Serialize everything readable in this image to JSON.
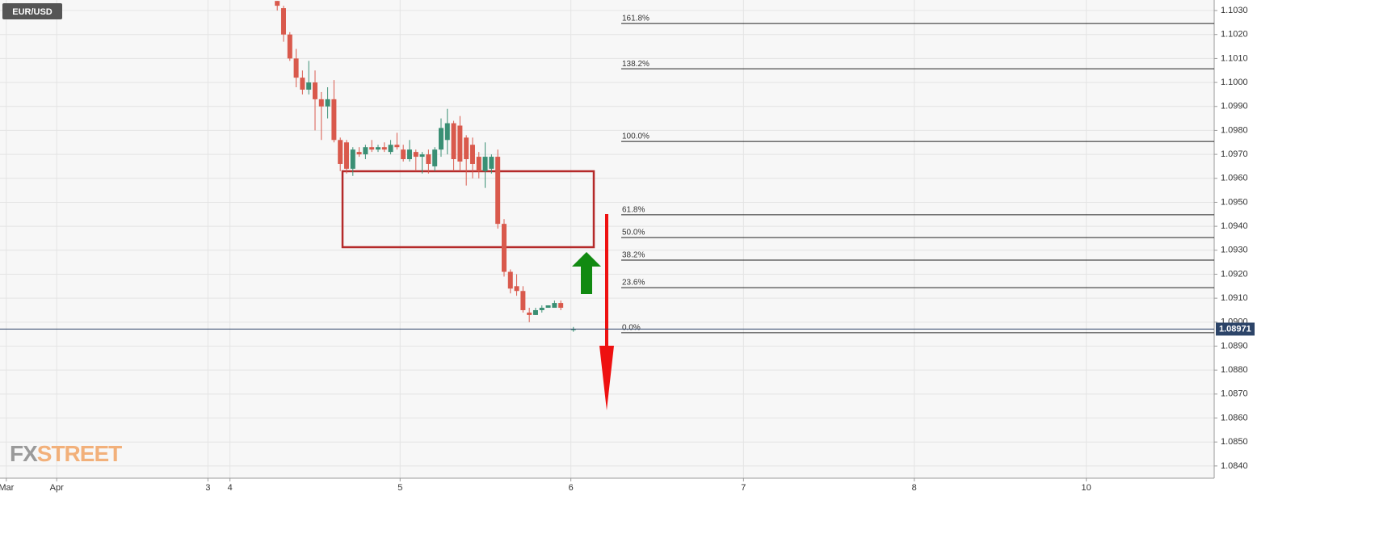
{
  "chart_data": {
    "type": "candlestick",
    "title": "EUR/USD",
    "logo_fx": "FX",
    "logo_street": "STREET",
    "x": [
      44,
      45,
      46,
      47,
      48,
      49,
      50,
      51,
      52,
      53,
      54,
      55,
      56,
      57,
      58,
      59,
      60,
      61,
      62,
      63,
      64,
      65,
      66,
      67,
      68,
      69,
      70,
      71,
      72,
      73,
      74,
      75,
      76,
      77,
      78,
      79,
      80,
      81,
      82,
      83,
      84,
      85,
      86,
      87,
      88,
      89,
      91
    ],
    "open": [
      1.1034,
      1.1031,
      1.102,
      1.101,
      1.1002,
      1.0997,
      1.1,
      1.0993,
      1.099,
      1.0993,
      1.0976,
      1.0975,
      1.0964,
      1.0971,
      1.097,
      1.0973,
      1.0972,
      1.0973,
      1.0971,
      1.0974,
      1.0972,
      1.0968,
      1.0971,
      1.0969,
      1.097,
      1.0965,
      1.0972,
      1.0976,
      1.0983,
      1.0982,
      1.0977,
      1.0974,
      1.0969,
      1.0963,
      1.0964,
      1.0969,
      1.0941,
      1.0921,
      1.0915,
      1.0913,
      1.0904,
      1.0903,
      1.0905,
      1.0906,
      1.0906,
      1.0908,
      1.0897
    ],
    "high": [
      1.1034,
      1.1032,
      1.1021,
      1.1014,
      1.1005,
      1.1009,
      1.1005,
      1.0996,
      1.0998,
      1.1001,
      1.0977,
      1.0976,
      1.0973,
      1.0973,
      1.0974,
      1.0976,
      1.0974,
      1.0975,
      1.0976,
      1.0979,
      1.0974,
      1.0976,
      1.0972,
      1.0971,
      1.0972,
      1.0973,
      1.0985,
      1.0989,
      1.0984,
      1.0986,
      1.0978,
      1.0977,
      1.0971,
      1.0975,
      1.097,
      1.0972,
      1.0943,
      1.0922,
      1.092,
      1.0915,
      1.0906,
      1.0906,
      1.0907,
      1.0907,
      1.0909,
      1.0909,
      1.0898
    ],
    "low": [
      1.103,
      1.1017,
      1.1009,
      1.0998,
      1.0995,
      1.0995,
      1.098,
      1.0976,
      1.0985,
      1.0975,
      1.0963,
      1.0962,
      1.0961,
      1.0969,
      1.0968,
      1.0971,
      1.0971,
      1.0971,
      1.097,
      1.0972,
      1.0967,
      1.0967,
      1.0963,
      1.0962,
      1.0962,
      1.0963,
      1.0969,
      1.097,
      1.0963,
      1.0963,
      1.0957,
      1.096,
      1.096,
      1.0956,
      1.0962,
      1.0939,
      1.0919,
      1.0912,
      1.0911,
      1.0904,
      1.09,
      1.0903,
      1.0904,
      1.0906,
      1.0907,
      1.0905,
      1.0896
    ],
    "close": [
      1.1032,
      1.102,
      1.101,
      1.1002,
      1.0997,
      1.1,
      1.0993,
      1.099,
      1.0993,
      1.0976,
      1.0966,
      1.0964,
      1.0972,
      1.097,
      1.0973,
      1.0972,
      1.0973,
      1.0972,
      1.0974,
      1.0973,
      1.0968,
      1.0972,
      1.0969,
      1.097,
      1.0966,
      1.0972,
      1.0981,
      1.0983,
      1.0968,
      1.0967,
      1.0968,
      1.0966,
      1.0963,
      1.0969,
      1.0969,
      1.0941,
      1.0921,
      1.0914,
      1.0913,
      1.0905,
      1.0903,
      1.0905,
      1.0906,
      1.0907,
      1.0908,
      1.0906,
      1.0897
    ],
    "up_color": "#3a8f74",
    "down_color": "#d9594c",
    "xlim": [
      0,
      192.7
    ],
    "xticks": [
      {
        "value": 1,
        "label": "Mar"
      },
      {
        "value": 9,
        "label": "Apr"
      },
      {
        "value": 33,
        "label": "3"
      },
      {
        "value": 36.5,
        "label": "4"
      },
      {
        "value": 63.5,
        "label": "5"
      },
      {
        "value": 90.6,
        "label": "6"
      },
      {
        "value": 118,
        "label": "7"
      },
      {
        "value": 145.1,
        "label": "8"
      },
      {
        "value": 172.4,
        "label": "10"
      }
    ],
    "ylim": [
      1.08349,
      1.10344
    ],
    "yticks": [
      {
        "value": 1.103,
        "label": "1.1030"
      },
      {
        "value": 1.102,
        "label": "1.1020"
      },
      {
        "value": 1.101,
        "label": "1.1010"
      },
      {
        "value": 1.1,
        "label": "1.1000"
      },
      {
        "value": 1.099,
        "label": "1.0990"
      },
      {
        "value": 1.098,
        "label": "1.0980"
      },
      {
        "value": 1.097,
        "label": "1.0970"
      },
      {
        "value": 1.096,
        "label": "1.0960"
      },
      {
        "value": 1.095,
        "label": "1.0950"
      },
      {
        "value": 1.094,
        "label": "1.0940"
      },
      {
        "value": 1.093,
        "label": "1.0930"
      },
      {
        "value": 1.092,
        "label": "1.0920"
      },
      {
        "value": 1.091,
        "label": "1.0910"
      },
      {
        "value": 1.09,
        "label": "1.0900"
      },
      {
        "value": 1.089,
        "label": "1.0890"
      },
      {
        "value": 1.088,
        "label": "1.0880"
      },
      {
        "value": 1.087,
        "label": "1.0870"
      },
      {
        "value": 1.086,
        "label": "1.0860"
      },
      {
        "value": 1.085,
        "label": "1.0850"
      },
      {
        "value": 1.084,
        "label": "1.0840"
      }
    ],
    "grid": true,
    "fib_levels": [
      {
        "label": "161.8%",
        "value": 1.10246
      },
      {
        "label": "138.2%",
        "value": 1.10057
      },
      {
        "label": "100.0%",
        "value": 1.09754
      },
      {
        "label": "61.8%",
        "value": 1.09448
      },
      {
        "label": "50.0%",
        "value": 1.09353
      },
      {
        "label": "38.2%",
        "value": 1.09259
      },
      {
        "label": "23.6%",
        "value": 1.09144
      },
      {
        "label": "0.0%",
        "value": 1.08956
      }
    ],
    "last_price": 1.08971
  }
}
